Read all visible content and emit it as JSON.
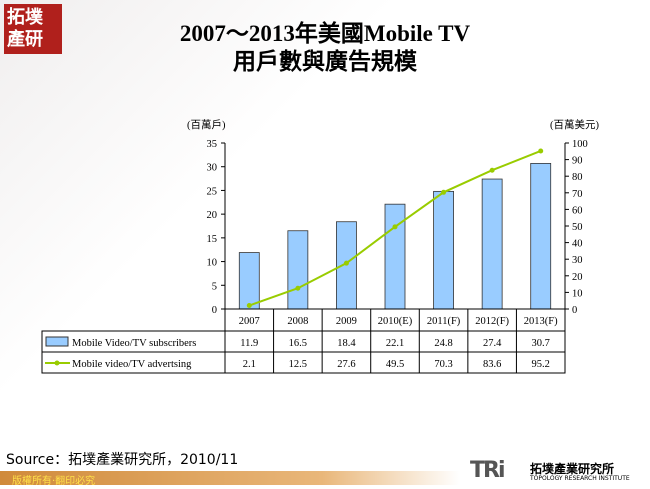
{
  "logo": {
    "text": "拓墣產研"
  },
  "title": {
    "line1": "2007～2013年美國Mobile TV",
    "line2": "用戶數與廣告規模"
  },
  "chart_data": {
    "type": "bar+line",
    "categories": [
      "2007",
      "2008",
      "2009",
      "2010(E)",
      "2011(F)",
      "2012(F)",
      "2013(F)"
    ],
    "series": [
      {
        "name": "Mobile Video/TV  subscribers",
        "type": "bar",
        "axis": "left",
        "values": [
          11.9,
          16.5,
          18.4,
          22.1,
          24.8,
          27.4,
          30.7
        ],
        "color": "#99ccff"
      },
      {
        "name": "Mobile video/TV  advertsing",
        "type": "line",
        "axis": "right",
        "values": [
          2.1,
          12.5,
          27.6,
          49.5,
          70.3,
          83.6,
          95.2
        ],
        "color": "#99cc00"
      }
    ],
    "ylabel_left": "(百萬戶)",
    "ylabel_right": "(百萬美元)",
    "ylim_left": [
      0,
      35
    ],
    "yticks_left": [
      0,
      5,
      10,
      15,
      20,
      25,
      30,
      35
    ],
    "ylim_right": [
      0,
      100
    ],
    "yticks_right": [
      0,
      10,
      20,
      30,
      40,
      50,
      60,
      70,
      80,
      90,
      100
    ],
    "grid": false,
    "legend": "data-table"
  },
  "source": "Source：拓墣產業研究所，2010/11",
  "footer": "版權所有‧翻印必究",
  "brand": {
    "mark": "TRi",
    "name": "拓墣產業研究所",
    "english": "TOPOLOGY RESEARCH INSTITUTE"
  }
}
